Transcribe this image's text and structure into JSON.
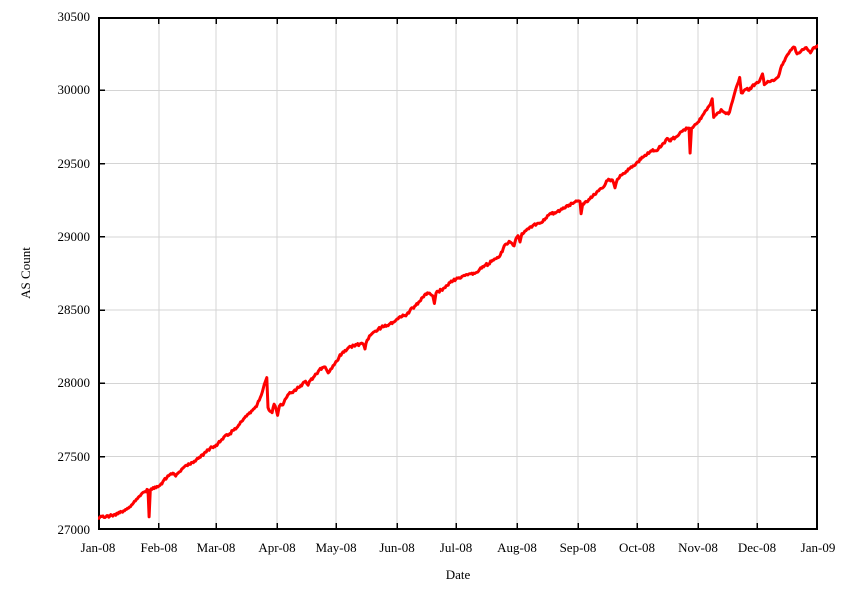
{
  "chart_data": {
    "type": "line",
    "title": "",
    "xlabel": "Date",
    "ylabel": "AS Count",
    "grid": true,
    "legend": false,
    "colors": {
      "line": "#ff0000",
      "grid": "#d4d4d4",
      "axis": "#000000",
      "background": "#ffffff",
      "text": "#000000"
    },
    "x_axis": {
      "type": "time",
      "range_days": [
        0,
        366
      ],
      "ticks": [
        {
          "label": "Jan-08",
          "day": 0
        },
        {
          "label": "Feb-08",
          "day": 31
        },
        {
          "label": "Mar-08",
          "day": 60
        },
        {
          "label": "Apr-08",
          "day": 91
        },
        {
          "label": "May-08",
          "day": 121
        },
        {
          "label": "Jun-08",
          "day": 152
        },
        {
          "label": "Jul-08",
          "day": 182
        },
        {
          "label": "Aug-08",
          "day": 213
        },
        {
          "label": "Sep-08",
          "day": 244
        },
        {
          "label": "Oct-08",
          "day": 274
        },
        {
          "label": "Nov-08",
          "day": 305
        },
        {
          "label": "Dec-08",
          "day": 335
        },
        {
          "label": "Jan-09",
          "day": 366
        }
      ]
    },
    "y_axis": {
      "range": [
        27000,
        30500
      ],
      "tick_step": 500,
      "ticks": [
        27000,
        27500,
        28000,
        28500,
        29000,
        29500,
        30000,
        30500
      ]
    },
    "series": [
      {
        "name": "AS Count",
        "color": "#ff0000",
        "points": [
          [
            0,
            27080
          ],
          [
            1,
            27088
          ],
          [
            2,
            27092
          ],
          [
            3,
            27086
          ],
          [
            4,
            27090
          ],
          [
            5,
            27098
          ],
          [
            6,
            27094
          ],
          [
            7,
            27100
          ],
          [
            8,
            27104
          ],
          [
            9,
            27100
          ],
          [
            10,
            27110
          ],
          [
            11,
            27117
          ],
          [
            12,
            27124
          ],
          [
            13,
            27132
          ],
          [
            14,
            27140
          ],
          [
            15,
            27148
          ],
          [
            16,
            27157
          ],
          [
            17,
            27170
          ],
          [
            18,
            27184
          ],
          [
            19,
            27198
          ],
          [
            20,
            27213
          ],
          [
            21,
            27230
          ],
          [
            22,
            27244
          ],
          [
            23,
            27257
          ],
          [
            24,
            27263
          ],
          [
            25.4,
            27272
          ],
          [
            26,
            27090
          ],
          [
            26.6,
            27272
          ],
          [
            27.5,
            27278
          ],
          [
            28.5,
            27283
          ],
          [
            29.5,
            27288
          ],
          [
            30.5,
            27295
          ],
          [
            31,
            27300
          ],
          [
            33,
            27330
          ],
          [
            35,
            27358
          ],
          [
            36.5,
            27378
          ],
          [
            38,
            27388
          ],
          [
            39.5,
            27368
          ],
          [
            41,
            27393
          ],
          [
            43,
            27420
          ],
          [
            45,
            27442
          ],
          [
            46,
            27452
          ],
          [
            47,
            27448
          ],
          [
            48,
            27462
          ],
          [
            50,
            27480
          ],
          [
            51,
            27488
          ],
          [
            52,
            27495
          ],
          [
            54,
            27525
          ],
          [
            56,
            27548
          ],
          [
            58,
            27565
          ],
          [
            60,
            27580
          ],
          [
            61,
            27590
          ],
          [
            63,
            27618
          ],
          [
            64,
            27635
          ],
          [
            65,
            27648
          ],
          [
            66,
            27645
          ],
          [
            67,
            27658
          ],
          [
            69,
            27680
          ],
          [
            71,
            27705
          ],
          [
            72,
            27722
          ],
          [
            73,
            27740
          ],
          [
            74,
            27758
          ],
          [
            75,
            27775
          ],
          [
            76,
            27788
          ],
          [
            77,
            27800
          ],
          [
            78,
            27812
          ],
          [
            79,
            27825
          ],
          [
            80,
            27840
          ],
          [
            81,
            27858
          ],
          [
            82,
            27885
          ],
          [
            83,
            27920
          ],
          [
            84,
            27965
          ],
          [
            85,
            28010
          ],
          [
            85.8,
            28040
          ],
          [
            86.4,
            27835
          ],
          [
            87.5,
            27810
          ],
          [
            88.5,
            27800
          ],
          [
            89.5,
            27858
          ],
          [
            90.5,
            27828
          ],
          [
            91.3,
            27782
          ],
          [
            92.2,
            27845
          ],
          [
            93.5,
            27852
          ],
          [
            94.5,
            27870
          ],
          [
            95.5,
            27898
          ],
          [
            96.5,
            27922
          ],
          [
            98,
            27935
          ],
          [
            99.5,
            27948
          ],
          [
            101,
            27962
          ],
          [
            102.5,
            27975
          ],
          [
            104,
            27998
          ],
          [
            105.5,
            28015
          ],
          [
            106.8,
            27988
          ],
          [
            108,
            28022
          ],
          [
            109.5,
            28042
          ],
          [
            111,
            28065
          ],
          [
            112.5,
            28092
          ],
          [
            114,
            28108
          ],
          [
            115.5,
            28112
          ],
          [
            117,
            28072
          ],
          [
            118.3,
            28098
          ],
          [
            119.5,
            28122
          ],
          [
            121,
            28150
          ],
          [
            122.5,
            28178
          ],
          [
            124,
            28205
          ],
          [
            125.5,
            28225
          ],
          [
            127,
            28240
          ],
          [
            128.5,
            28252
          ],
          [
            130,
            28258
          ],
          [
            131.5,
            28262
          ],
          [
            133,
            28268
          ],
          [
            134.5,
            28272
          ],
          [
            135.7,
            28235
          ],
          [
            136.8,
            28295
          ],
          [
            138,
            28325
          ],
          [
            139.5,
            28342
          ],
          [
            141,
            28358
          ],
          [
            142.5,
            28372
          ],
          [
            144,
            28382
          ],
          [
            145.5,
            28388
          ],
          [
            147,
            28395
          ],
          [
            148.5,
            28408
          ],
          [
            150,
            28418
          ],
          [
            151.5,
            28432
          ],
          [
            152.5,
            28440
          ],
          [
            154,
            28452
          ],
          [
            155.5,
            28462
          ],
          [
            157,
            28472
          ],
          [
            158.5,
            28495
          ],
          [
            160,
            28515
          ],
          [
            161.5,
            28532
          ],
          [
            163,
            28555
          ],
          [
            164.5,
            28582
          ],
          [
            166,
            28605
          ],
          [
            167.5,
            28618
          ],
          [
            169,
            28608
          ],
          [
            170.2,
            28598
          ],
          [
            171,
            28545
          ],
          [
            171.8,
            28615
          ],
          [
            173,
            28628
          ],
          [
            174.5,
            28638
          ],
          [
            176,
            28652
          ],
          [
            177.5,
            28668
          ],
          [
            179,
            28688
          ],
          [
            180.5,
            28700
          ],
          [
            182,
            28712
          ],
          [
            183.5,
            28722
          ],
          [
            185,
            28730
          ],
          [
            186.5,
            28736
          ],
          [
            188,
            28740
          ],
          [
            189.5,
            28748
          ],
          [
            191,
            28752
          ],
          [
            192.5,
            28758
          ],
          [
            194,
            28778
          ],
          [
            195.5,
            28798
          ],
          [
            197,
            28808
          ],
          [
            198.5,
            28815
          ],
          [
            200,
            28832
          ],
          [
            201.5,
            28848
          ],
          [
            203,
            28860
          ],
          [
            204.5,
            28875
          ],
          [
            206,
            28920
          ],
          [
            207.5,
            28952
          ],
          [
            209,
            28970
          ],
          [
            210.5,
            28955
          ],
          [
            211.5,
            28938
          ],
          [
            212.5,
            28988
          ],
          [
            213.5,
            29008
          ],
          [
            214.5,
            28965
          ],
          [
            215.5,
            29022
          ],
          [
            217,
            29040
          ],
          [
            218.5,
            29055
          ],
          [
            220,
            29070
          ],
          [
            221.5,
            29082
          ],
          [
            223,
            29088
          ],
          [
            224.5,
            29092
          ],
          [
            226,
            29102
          ],
          [
            227.5,
            29125
          ],
          [
            229,
            29148
          ],
          [
            230.5,
            29158
          ],
          [
            232,
            29165
          ],
          [
            233.5,
            29172
          ],
          [
            235,
            29182
          ],
          [
            236.5,
            29198
          ],
          [
            238,
            29210
          ],
          [
            239.5,
            29218
          ],
          [
            241,
            29228
          ],
          [
            242.5,
            29238
          ],
          [
            244,
            29245
          ],
          [
            245,
            29242
          ],
          [
            245.6,
            29158
          ],
          [
            246.4,
            29225
          ],
          [
            248,
            29242
          ],
          [
            249.5,
            29255
          ],
          [
            251,
            29268
          ],
          [
            252.5,
            29288
          ],
          [
            254,
            29312
          ],
          [
            255.5,
            29330
          ],
          [
            257,
            29340
          ],
          [
            258.5,
            29382
          ],
          [
            260,
            29390
          ],
          [
            261.5,
            29388
          ],
          [
            262.8,
            29335
          ],
          [
            264,
            29392
          ],
          [
            265.5,
            29420
          ],
          [
            267,
            29432
          ],
          [
            268.5,
            29448
          ],
          [
            270,
            29462
          ],
          [
            271.5,
            29475
          ],
          [
            273,
            29488
          ],
          [
            274.5,
            29512
          ],
          [
            276,
            29530
          ],
          [
            277.5,
            29548
          ],
          [
            279,
            29562
          ],
          [
            280.5,
            29578
          ],
          [
            282,
            29595
          ],
          [
            283.5,
            29588
          ],
          [
            285,
            29605
          ],
          [
            286.5,
            29622
          ],
          [
            288,
            29640
          ],
          [
            289.3,
            29672
          ],
          [
            290.5,
            29655
          ],
          [
            292,
            29668
          ],
          [
            293.5,
            29678
          ],
          [
            295,
            29692
          ],
          [
            296.5,
            29718
          ],
          [
            298,
            29732
          ],
          [
            299.5,
            29740
          ],
          [
            300.4,
            29742
          ],
          [
            301,
            29572
          ],
          [
            301.7,
            29742
          ],
          [
            303,
            29758
          ],
          [
            304.5,
            29775
          ],
          [
            305.5,
            29788
          ],
          [
            307,
            29822
          ],
          [
            308.5,
            29855
          ],
          [
            310,
            29882
          ],
          [
            311.2,
            29902
          ],
          [
            312.2,
            29942
          ],
          [
            313,
            29815
          ],
          [
            314.2,
            29832
          ],
          [
            315.5,
            29848
          ],
          [
            316.8,
            29868
          ],
          [
            318,
            29852
          ],
          [
            319.2,
            29840
          ],
          [
            320.5,
            29838
          ],
          [
            322,
            29902
          ],
          [
            323.5,
            29975
          ],
          [
            325,
            30038
          ],
          [
            326.2,
            30088
          ],
          [
            327,
            29982
          ],
          [
            328.2,
            29995
          ],
          [
            329.5,
            30008
          ],
          [
            331,
            30000
          ],
          [
            332.5,
            30028
          ],
          [
            334,
            30042
          ],
          [
            335.5,
            30052
          ],
          [
            336.8,
            30082
          ],
          [
            337.8,
            30112
          ],
          [
            338.7,
            30038
          ],
          [
            340,
            30052
          ],
          [
            341.5,
            30058
          ],
          [
            343,
            30068
          ],
          [
            344.5,
            30078
          ],
          [
            345.8,
            30092
          ],
          [
            347,
            30148
          ],
          [
            348.5,
            30192
          ],
          [
            350,
            30232
          ],
          [
            351.5,
            30262
          ],
          [
            353,
            30288
          ],
          [
            354.2,
            30292
          ],
          [
            355.3,
            30248
          ],
          [
            356.5,
            30255
          ],
          [
            358,
            30278
          ],
          [
            359.5,
            30290
          ],
          [
            361,
            30272
          ],
          [
            362.2,
            30255
          ],
          [
            363.5,
            30288
          ],
          [
            365,
            30298
          ],
          [
            366,
            30305
          ]
        ]
      }
    ]
  }
}
